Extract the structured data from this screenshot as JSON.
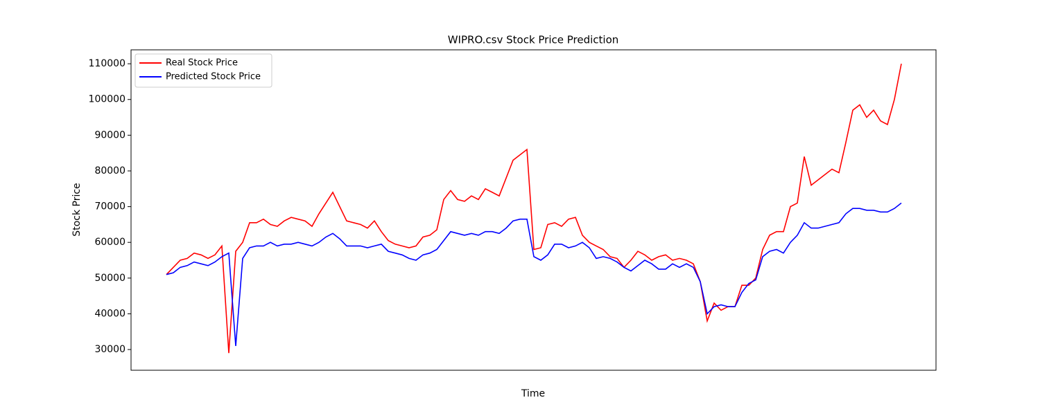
{
  "chart_data": {
    "type": "line",
    "title": "WIPRO.csv Stock Price Prediction",
    "x_label": "Time",
    "y_label": "Stock Price",
    "ylim": [
      24200,
      113900
    ],
    "yticks": [
      30000,
      40000,
      50000,
      60000,
      70000,
      80000,
      90000,
      100000,
      110000
    ],
    "legend": "upper left",
    "series": [
      {
        "name": "Real Stock Price",
        "color": "#ff0000",
        "values": [
          51000,
          53000,
          55000,
          55500,
          57000,
          56500,
          55500,
          56500,
          59000,
          29000,
          57500,
          60000,
          65500,
          65500,
          66500,
          65000,
          64500,
          66000,
          67000,
          66500,
          66000,
          64500,
          68000,
          71000,
          74000,
          70000,
          66000,
          65500,
          65000,
          64000,
          66000,
          63000,
          60500,
          59500,
          59000,
          58500,
          59000,
          61500,
          62000,
          63500,
          72000,
          74500,
          72000,
          71500,
          73000,
          72000,
          75000,
          74000,
          73000,
          78000,
          83000,
          84500,
          86000,
          58000,
          58500,
          65000,
          65500,
          64500,
          66500,
          67000,
          62000,
          60000,
          59000,
          58000,
          56000,
          55500,
          53000,
          55000,
          57500,
          56500,
          55000,
          56000,
          56500,
          55000,
          55500,
          55000,
          54000,
          49000,
          38000,
          43000,
          41000,
          42000,
          42000,
          48000,
          48000,
          50000,
          58000,
          62000,
          63000,
          63000,
          70000,
          71000,
          84000,
          76000,
          77500,
          79000,
          80500,
          79500,
          88000,
          97000,
          98500,
          95000,
          97000,
          94000,
          93000,
          100000,
          110000
        ]
      },
      {
        "name": "Predicted Stock Price",
        "color": "#0000ff",
        "values": [
          51000,
          51500,
          53000,
          53500,
          54500,
          54000,
          53500,
          54500,
          56000,
          57000,
          31000,
          55500,
          58500,
          59000,
          59000,
          60000,
          59000,
          59500,
          59500,
          60000,
          59500,
          59000,
          60000,
          61500,
          62500,
          61000,
          59000,
          59000,
          59000,
          58500,
          59000,
          59500,
          57500,
          57000,
          56500,
          55500,
          55000,
          56500,
          57000,
          58000,
          60500,
          63000,
          62500,
          62000,
          62500,
          62000,
          63000,
          63000,
          62500,
          64000,
          66000,
          66500,
          66500,
          56000,
          55000,
          56500,
          59500,
          59500,
          58500,
          59000,
          60000,
          58500,
          55500,
          56000,
          55500,
          54500,
          53000,
          52000,
          53500,
          55000,
          54000,
          52500,
          52500,
          54000,
          53000,
          54000,
          53000,
          49000,
          40000,
          42000,
          42500,
          42000,
          42000,
          46000,
          48500,
          49500,
          56000,
          57500,
          58000,
          57000,
          60000,
          62000,
          65500,
          64000,
          64000,
          64500,
          65000,
          65500,
          68000,
          69500,
          69500,
          69000,
          69000,
          68500,
          68500,
          69500,
          71000
        ]
      }
    ]
  }
}
